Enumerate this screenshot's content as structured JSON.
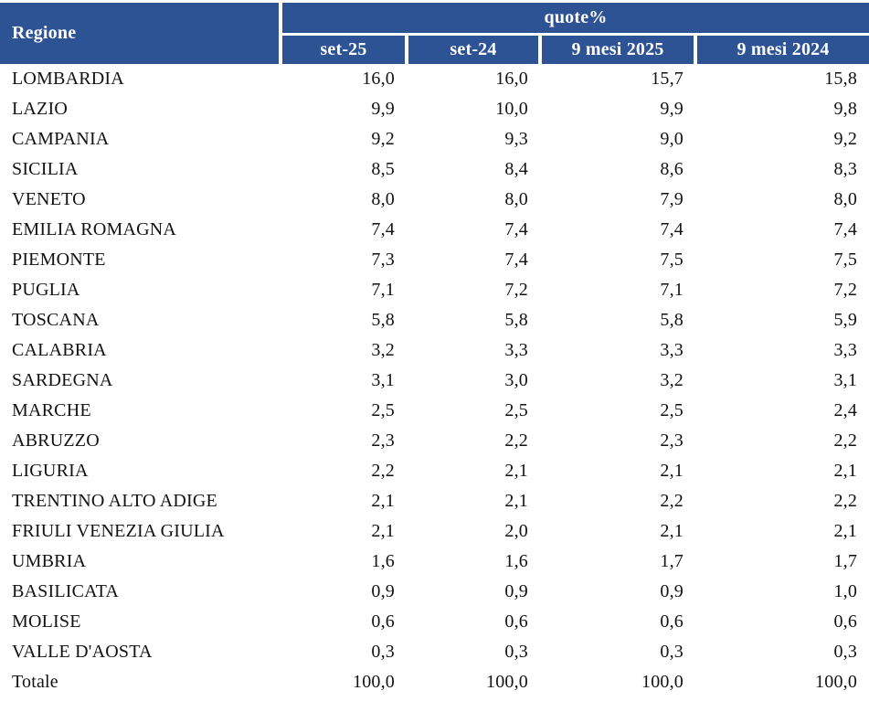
{
  "table": {
    "header": {
      "region_col": "Regione",
      "group": "quote%",
      "columns": [
        "set-25",
        "set-24",
        "9 mesi 2025",
        "9 mesi 2024"
      ]
    },
    "rows": [
      {
        "region": "LOMBARDIA",
        "values": [
          "16,0",
          "16,0",
          "15,7",
          "15,8"
        ]
      },
      {
        "region": "LAZIO",
        "values": [
          "9,9",
          "10,0",
          "9,9",
          "9,8"
        ]
      },
      {
        "region": "CAMPANIA",
        "values": [
          "9,2",
          "9,3",
          "9,0",
          "9,2"
        ]
      },
      {
        "region": "SICILIA",
        "values": [
          "8,5",
          "8,4",
          "8,6",
          "8,3"
        ]
      },
      {
        "region": "VENETO",
        "values": [
          "8,0",
          "8,0",
          "7,9",
          "8,0"
        ]
      },
      {
        "region": "EMILIA ROMAGNA",
        "values": [
          "7,4",
          "7,4",
          "7,4",
          "7,4"
        ]
      },
      {
        "region": "PIEMONTE",
        "values": [
          "7,3",
          "7,4",
          "7,5",
          "7,5"
        ]
      },
      {
        "region": "PUGLIA",
        "values": [
          "7,1",
          "7,2",
          "7,1",
          "7,2"
        ]
      },
      {
        "region": "TOSCANA",
        "values": [
          "5,8",
          "5,8",
          "5,8",
          "5,9"
        ]
      },
      {
        "region": "CALABRIA",
        "values": [
          "3,2",
          "3,3",
          "3,3",
          "3,3"
        ]
      },
      {
        "region": "SARDEGNA",
        "values": [
          "3,1",
          "3,0",
          "3,2",
          "3,1"
        ]
      },
      {
        "region": "MARCHE",
        "values": [
          "2,5",
          "2,5",
          "2,5",
          "2,4"
        ]
      },
      {
        "region": "ABRUZZO",
        "values": [
          "2,3",
          "2,2",
          "2,3",
          "2,2"
        ]
      },
      {
        "region": "LIGURIA",
        "values": [
          "2,2",
          "2,1",
          "2,1",
          "2,1"
        ]
      },
      {
        "region": "TRENTINO ALTO ADIGE",
        "values": [
          "2,1",
          "2,1",
          "2,2",
          "2,2"
        ]
      },
      {
        "region": "FRIULI VENEZIA GIULIA",
        "values": [
          "2,1",
          "2,0",
          "2,1",
          "2,1"
        ]
      },
      {
        "region": "UMBRIA",
        "values": [
          "1,6",
          "1,6",
          "1,7",
          "1,7"
        ]
      },
      {
        "region": "BASILICATA",
        "values": [
          "0,9",
          "0,9",
          "0,9",
          "1,0"
        ]
      },
      {
        "region": "MOLISE",
        "values": [
          "0,6",
          "0,6",
          "0,6",
          "0,6"
        ]
      },
      {
        "region": "VALLE D'AOSTA",
        "values": [
          "0,3",
          "0,3",
          "0,3",
          "0,3"
        ]
      },
      {
        "region": "Totale",
        "values": [
          "100,0",
          "100,0",
          "100,0",
          "100,0"
        ]
      }
    ],
    "colors": {
      "header_bg": "#2E5394",
      "header_text": "#FFFFFF",
      "body_text": "#121212",
      "separator": "#FFFFFF"
    }
  }
}
